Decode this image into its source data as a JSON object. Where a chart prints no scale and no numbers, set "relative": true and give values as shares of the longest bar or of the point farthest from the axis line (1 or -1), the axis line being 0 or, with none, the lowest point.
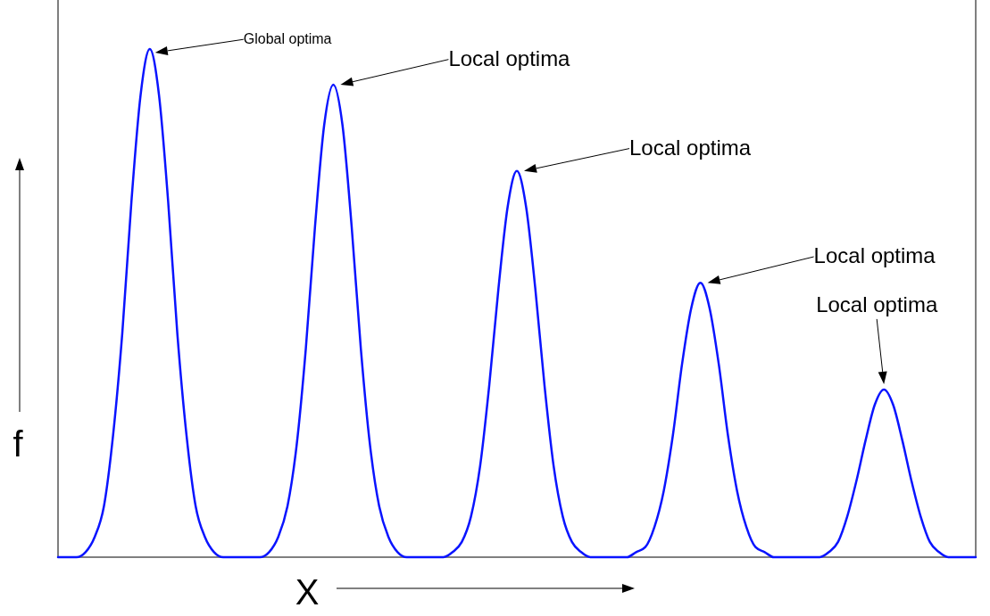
{
  "chart_data": {
    "type": "line",
    "relative": true,
    "xlabel": "X",
    "ylabel": "f",
    "categories": [
      null,
      null,
      null,
      null,
      null,
      null,
      null,
      null,
      null,
      null,
      null,
      null,
      null,
      null,
      null,
      null,
      null,
      null,
      null,
      null,
      null,
      null,
      null,
      null,
      null,
      null,
      null,
      null,
      null,
      null,
      null,
      null,
      null,
      null,
      null,
      null,
      null,
      null,
      null,
      null,
      null,
      null,
      null,
      null,
      null,
      null,
      null,
      null,
      null,
      null,
      null,
      null,
      null,
      null,
      null,
      null,
      null,
      null,
      null,
      null,
      null,
      null,
      null,
      null,
      null,
      null,
      null,
      null,
      null,
      null,
      null,
      null,
      null,
      null,
      null,
      null,
      null,
      null,
      null,
      null,
      null,
      null,
      null,
      null,
      null,
      null,
      null,
      null,
      null,
      null,
      null,
      null,
      null,
      null,
      null,
      null,
      null,
      null,
      null,
      null,
      null
    ],
    "series": [
      {
        "color": "#0a14ff",
        "values": [
          0,
          0,
          0,
          0.01,
          0.04,
          0.1,
          0.24,
          0.44,
          0.7,
          0.91,
          1,
          0.91,
          0.7,
          0.44,
          0.24,
          0.1,
          0.04,
          0.01,
          0,
          0,
          0,
          0,
          0,
          0.01,
          0.04,
          0.1,
          0.22,
          0.41,
          0.65,
          0.85,
          0.93,
          0.85,
          0.65,
          0.41,
          0.22,
          0.1,
          0.04,
          0.01,
          0,
          0,
          0,
          0,
          0,
          0.01,
          0.03,
          0.08,
          0.18,
          0.34,
          0.53,
          0.69,
          0.76,
          0.69,
          0.53,
          0.34,
          0.18,
          0.08,
          0.03,
          0.01,
          0,
          0,
          0,
          0,
          0,
          0.01,
          0.02,
          0.06,
          0.13,
          0.24,
          0.38,
          0.49,
          0.54,
          0.49,
          0.38,
          0.24,
          0.13,
          0.06,
          0.02,
          0.01,
          0,
          0,
          0,
          0,
          0,
          0,
          0.01,
          0.03,
          0.08,
          0.15,
          0.23,
          0.3,
          0.33,
          0.3,
          0.23,
          0.15,
          0.08,
          0.03,
          0.01,
          0,
          0,
          0,
          0
        ]
      }
    ],
    "annotations": [
      "Global optima",
      "Local optima",
      "Local optima",
      "Local optima",
      "Local optima"
    ]
  }
}
